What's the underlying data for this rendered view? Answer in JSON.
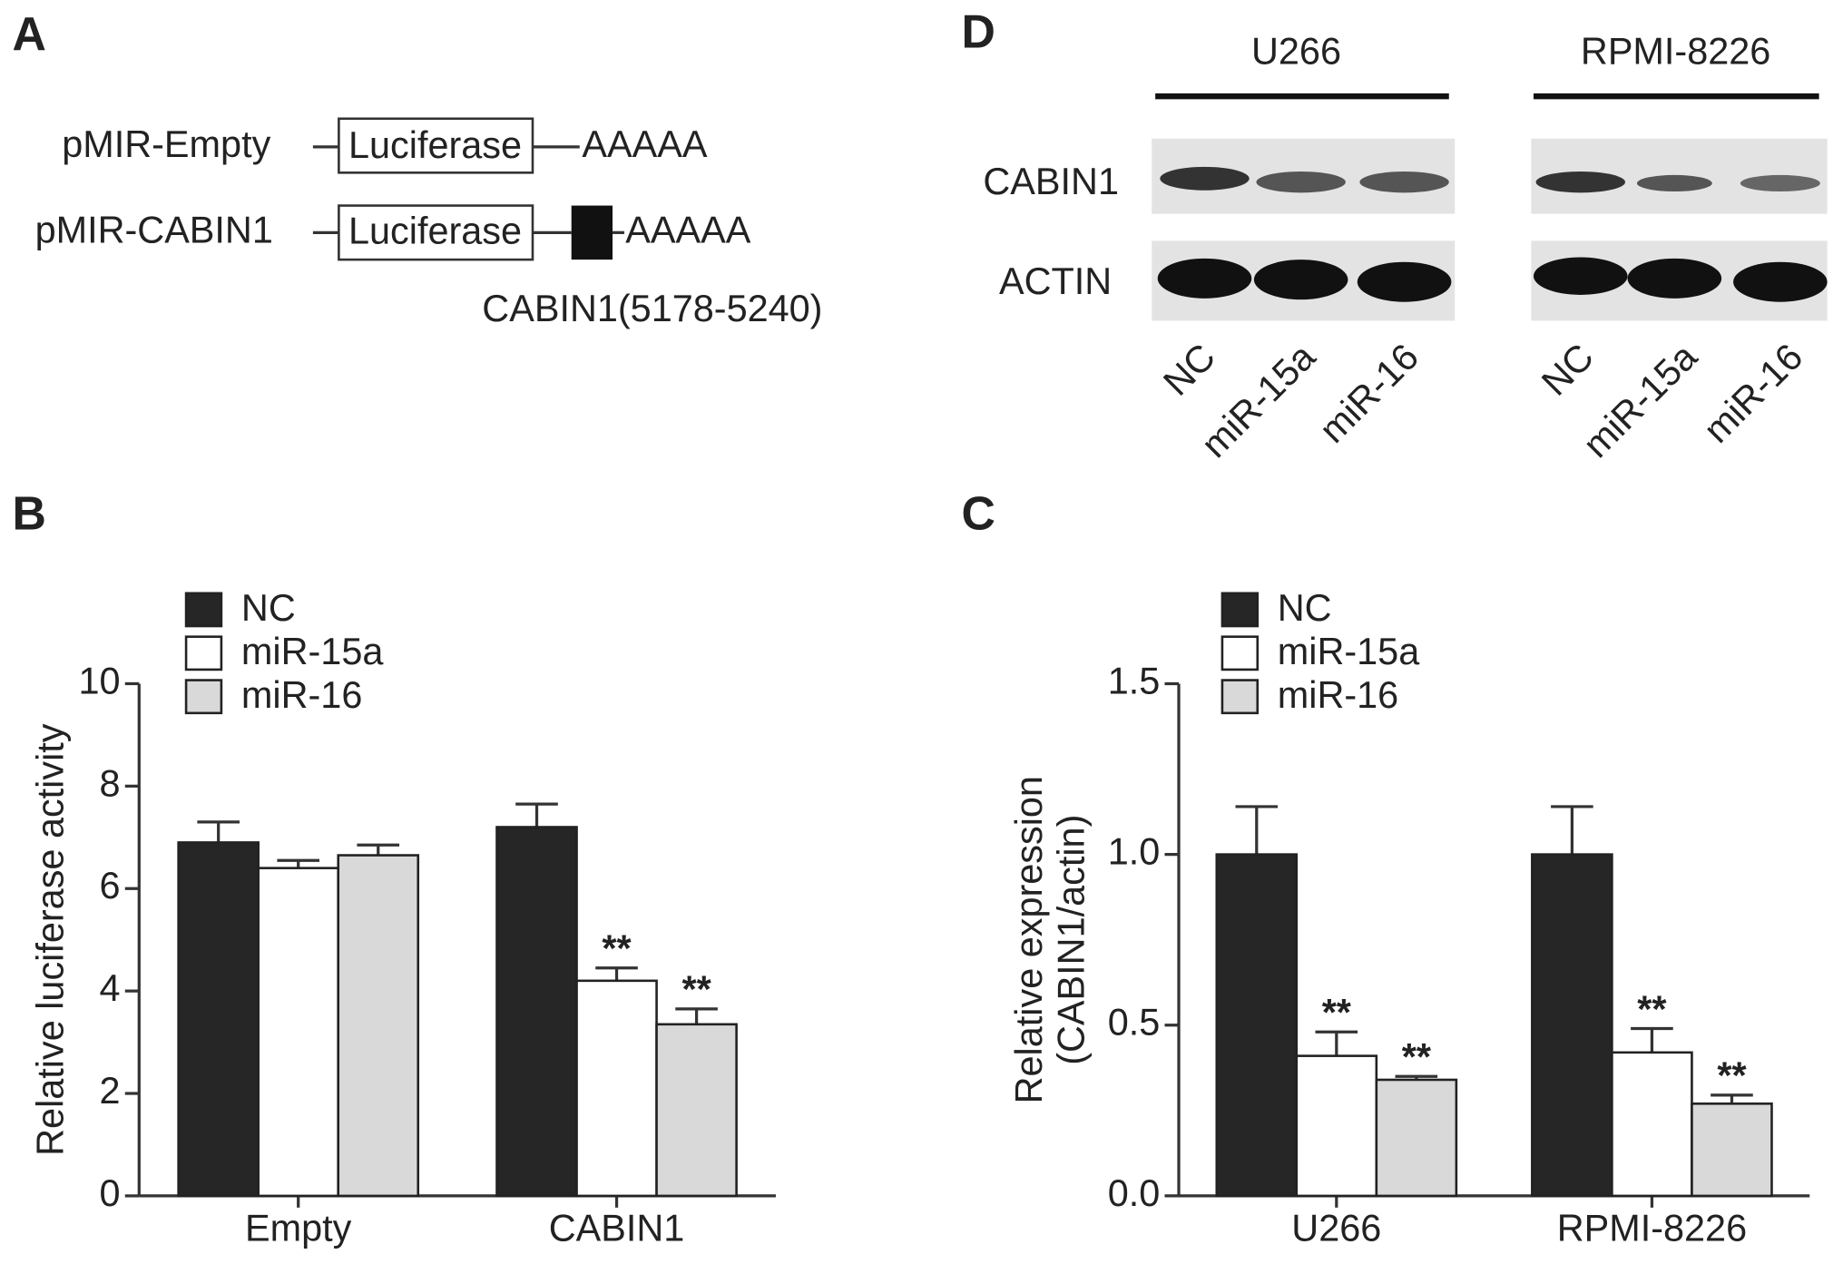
{
  "construct_diagram": {
    "panel": "A",
    "constructs": [
      {
        "name": "pMIR-Empty",
        "gene": "Luciferase",
        "tail": "AAAAA"
      },
      {
        "name": "pMIR-CABIN1",
        "gene": "Luciferase",
        "tail": "AAAAA",
        "insert_label": "CABIN1(5178-5240)"
      }
    ]
  },
  "western_blot": {
    "panel": "D",
    "proteins": [
      "CABIN1",
      "ACTIN"
    ],
    "groups": [
      {
        "name": "U266",
        "lanes": [
          "NC",
          "miR-15a",
          "miR-16"
        ]
      },
      {
        "name": "RPMI-8226",
        "lanes": [
          "NC",
          "miR-15a",
          "miR-16"
        ]
      }
    ]
  },
  "chart_data": [
    {
      "type": "bar",
      "panel": "B",
      "ylabel": [
        "Relative luciferase activity"
      ],
      "categories": [
        "Empty",
        "CABIN1"
      ],
      "series": [
        {
          "name": "NC",
          "color": "#262626",
          "values": [
            6.9,
            7.2
          ],
          "errors": [
            0.4,
            0.45
          ],
          "significance": [
            null,
            null
          ]
        },
        {
          "name": "miR-15a",
          "color": "#ffffff",
          "values": [
            6.4,
            4.2
          ],
          "errors": [
            0.15,
            0.25
          ],
          "significance": [
            null,
            "**"
          ]
        },
        {
          "name": "miR-16",
          "color": "#d9d9d9",
          "values": [
            6.65,
            3.35
          ],
          "errors": [
            0.2,
            0.3
          ],
          "significance": [
            null,
            "**"
          ]
        }
      ],
      "ylim": [
        0,
        10
      ],
      "yticks": [
        0,
        2,
        4,
        6,
        8,
        10
      ],
      "legend": "upper left"
    },
    {
      "type": "bar",
      "panel": "C",
      "ylabel": [
        "Relative expression",
        "(CABIN1/actin)"
      ],
      "categories": [
        "U266",
        "RPMI-8226"
      ],
      "series": [
        {
          "name": "NC",
          "color": "#262626",
          "values": [
            1.0,
            1.0
          ],
          "errors": [
            0.14,
            0.14
          ],
          "significance": [
            null,
            null
          ]
        },
        {
          "name": "miR-15a",
          "color": "#ffffff",
          "values": [
            0.41,
            0.42
          ],
          "errors": [
            0.07,
            0.07
          ],
          "significance": [
            "**",
            "**"
          ]
        },
        {
          "name": "miR-16",
          "color": "#d9d9d9",
          "values": [
            0.34,
            0.27
          ],
          "errors": [
            0.01,
            0.025
          ],
          "significance": [
            "**",
            "**"
          ]
        }
      ],
      "ylim": [
        0,
        1.5
      ],
      "yticks": [
        {
          "value": 0,
          "label": "0.0"
        },
        0.5,
        {
          "value": 1,
          "label": "1.0"
        },
        1.5
      ],
      "legend": "upper left"
    }
  ]
}
